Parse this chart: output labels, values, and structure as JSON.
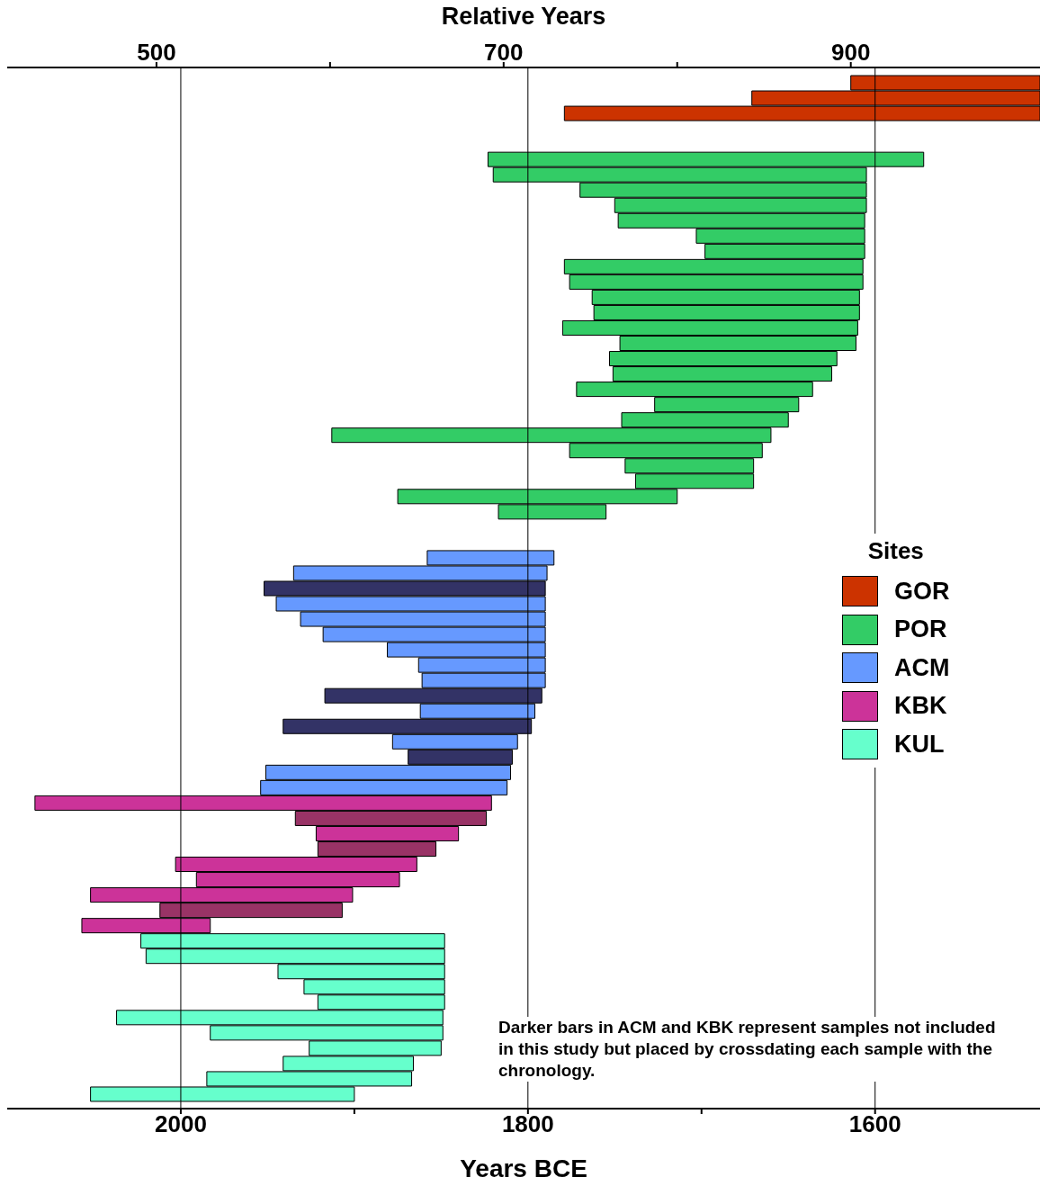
{
  "chart_data": {
    "type": "bar",
    "orientation": "horizontal",
    "xlabel": "Years BCE",
    "x2label": "Relative Years",
    "legend_title": "Sites",
    "legend": "right",
    "categories": [
      null,
      null,
      null,
      null,
      null,
      null,
      null,
      null,
      null,
      null,
      null,
      null,
      null,
      null,
      null,
      null,
      null,
      null,
      null,
      null,
      null,
      null,
      null,
      null,
      null,
      null,
      null,
      null,
      null,
      null,
      null,
      null,
      null,
      null,
      null,
      null,
      null,
      null,
      null,
      null,
      null,
      null,
      null,
      null,
      null,
      null,
      null,
      null,
      null,
      null,
      null,
      null,
      null,
      null,
      null,
      null,
      null,
      null,
      null,
      null,
      null,
      null,
      null,
      null,
      null,
      null,
      null
    ],
    "xlim": [
      2100,
      1505
    ],
    "xticks": [
      2000,
      {
        "value": 1900,
        "label": null
      },
      1800,
      {
        "value": 1700,
        "label": null
      },
      1600
    ],
    "x2lim": [
      414,
      1009
    ],
    "x2ticks": [
      500,
      {
        "value": 600,
        "label": null
      },
      700,
      {
        "value": 800,
        "label": null
      },
      900
    ],
    "ref_lines": [
      {
        "axis": "x",
        "value": 2000,
        "color": "#000000"
      },
      {
        "axis": "x",
        "value": 1800,
        "color": "#000000"
      },
      {
        "axis": "x",
        "value": 1600,
        "color": "#000000"
      }
    ],
    "series": [
      {
        "name": "GOR",
        "color": "#cc3300",
        "values": [
          109,
          166,
          274,
          null,
          null,
          null,
          null,
          null,
          null,
          null,
          null,
          null,
          null,
          null,
          null,
          null,
          null,
          null,
          null,
          null,
          null,
          null,
          null,
          null,
          null,
          null,
          null,
          null,
          null,
          null,
          null,
          null,
          null,
          null,
          null,
          null,
          null,
          null,
          null,
          null,
          null,
          null,
          null,
          null,
          null,
          null,
          null,
          null,
          null,
          null,
          null,
          null,
          null,
          null,
          null,
          null,
          null,
          null,
          null,
          null,
          null,
          null,
          null,
          null,
          null,
          null,
          null
        ],
        "base": [
          1505,
          1505,
          1505,
          null,
          null,
          null,
          null,
          null,
          null,
          null,
          null,
          null,
          null,
          null,
          null,
          null,
          null,
          null,
          null,
          null,
          null,
          null,
          null,
          null,
          null,
          null,
          null,
          null,
          null,
          null,
          null,
          null,
          null,
          null,
          null,
          null,
          null,
          null,
          null,
          null,
          null,
          null,
          null,
          null,
          null,
          null,
          null,
          null,
          null,
          null,
          null,
          null,
          null,
          null,
          null,
          null,
          null,
          null,
          null,
          null,
          null,
          null,
          null,
          null,
          null,
          null,
          null
        ]
      },
      {
        "name": "POR",
        "color": "#33cc66",
        "values": [
          null,
          null,
          null,
          null,
          null,
          251,
          215,
          165,
          145,
          142,
          97,
          92,
          172,
          169,
          154,
          153,
          170,
          136,
          131,
          126,
          136,
          83,
          96,
          253,
          111,
          74,
          68,
          161,
          62,
          null,
          null,
          null,
          null,
          null,
          null,
          null,
          null,
          null,
          null,
          null,
          null,
          null,
          null,
          null,
          null,
          null,
          null,
          null,
          null,
          null,
          null,
          null,
          null,
          null,
          null,
          null,
          null,
          null,
          null,
          null,
          null,
          null,
          null,
          null,
          null,
          null,
          null
        ],
        "base": [
          null,
          null,
          null,
          null,
          null,
          1572,
          1605,
          1605,
          1605,
          1606,
          1606,
          1606,
          1607,
          1607,
          1609,
          1609,
          1610,
          1611,
          1622,
          1625,
          1636,
          1644,
          1650,
          1660,
          1665,
          1670,
          1670,
          1714,
          1755,
          null,
          null,
          null,
          null,
          null,
          null,
          null,
          null,
          null,
          null,
          null,
          null,
          null,
          null,
          null,
          null,
          null,
          null,
          null,
          null,
          null,
          null,
          null,
          null,
          null,
          null,
          null,
          null,
          null,
          null,
          null,
          null,
          null,
          null,
          null,
          null,
          null,
          null
        ]
      },
      {
        "name": "ACM",
        "color": "#6699ff",
        "values": [
          null,
          null,
          null,
          null,
          null,
          null,
          null,
          null,
          null,
          null,
          null,
          null,
          null,
          null,
          null,
          null,
          null,
          null,
          null,
          null,
          null,
          null,
          null,
          null,
          null,
          null,
          null,
          null,
          null,
          null,
          null,
          73,
          146,
          null,
          155,
          141,
          128,
          91,
          73,
          71,
          null,
          66,
          null,
          72,
          null,
          141,
          142,
          null,
          null,
          null,
          null,
          null,
          null,
          null,
          null,
          null,
          null,
          null,
          null,
          null,
          null,
          null,
          null,
          null,
          null,
          null,
          null
        ],
        "base": [
          null,
          null,
          null,
          null,
          null,
          null,
          null,
          null,
          null,
          null,
          null,
          null,
          null,
          null,
          null,
          null,
          null,
          null,
          null,
          null,
          null,
          null,
          null,
          null,
          null,
          null,
          null,
          null,
          null,
          null,
          null,
          1785,
          1789,
          null,
          1790,
          1790,
          1790,
          1790,
          1790,
          1790,
          null,
          1796,
          null,
          1806,
          null,
          1810,
          1812,
          null,
          null,
          null,
          null,
          null,
          null,
          null,
          null,
          null,
          null,
          null,
          null,
          null,
          null,
          null,
          null,
          null,
          null,
          null,
          null
        ]
      },
      {
        "color": "#333366",
        "values": [
          null,
          null,
          null,
          null,
          null,
          null,
          null,
          null,
          null,
          null,
          null,
          null,
          null,
          null,
          null,
          null,
          null,
          null,
          null,
          null,
          null,
          null,
          null,
          null,
          null,
          null,
          null,
          null,
          null,
          null,
          null,
          null,
          null,
          162,
          null,
          null,
          null,
          null,
          null,
          null,
          125,
          null,
          143,
          null,
          60,
          null,
          null,
          null,
          null,
          null,
          null,
          null,
          null,
          null,
          null,
          null,
          null,
          null,
          null,
          null,
          null,
          null,
          null,
          null,
          null,
          null,
          null
        ],
        "base": [
          null,
          null,
          null,
          null,
          null,
          null,
          null,
          null,
          null,
          null,
          null,
          null,
          null,
          null,
          null,
          null,
          null,
          null,
          null,
          null,
          null,
          null,
          null,
          null,
          null,
          null,
          null,
          null,
          null,
          null,
          null,
          null,
          null,
          1790,
          null,
          null,
          null,
          null,
          null,
          null,
          1792,
          null,
          1798,
          null,
          1809,
          null,
          null,
          null,
          null,
          null,
          null,
          null,
          null,
          null,
          null,
          null,
          null,
          null,
          null,
          null,
          null,
          null,
          null,
          null,
          null,
          null,
          null
        ]
      },
      {
        "name": "KBK",
        "color": "#cc3399",
        "values": [
          null,
          null,
          null,
          null,
          null,
          null,
          null,
          null,
          null,
          null,
          null,
          null,
          null,
          null,
          null,
          null,
          null,
          null,
          null,
          null,
          null,
          null,
          null,
          null,
          null,
          null,
          null,
          null,
          null,
          null,
          null,
          null,
          null,
          null,
          null,
          null,
          null,
          null,
          null,
          null,
          null,
          null,
          null,
          null,
          null,
          null,
          null,
          263,
          null,
          82,
          null,
          139,
          117,
          151,
          null,
          74,
          null,
          null,
          null,
          null,
          null,
          null,
          null,
          null,
          null,
          null,
          null
        ],
        "base": [
          null,
          null,
          null,
          null,
          null,
          null,
          null,
          null,
          null,
          null,
          null,
          null,
          null,
          null,
          null,
          null,
          null,
          null,
          null,
          null,
          null,
          null,
          null,
          null,
          null,
          null,
          null,
          null,
          null,
          null,
          null,
          null,
          null,
          null,
          null,
          null,
          null,
          null,
          null,
          null,
          null,
          null,
          null,
          null,
          null,
          null,
          null,
          1821,
          null,
          1840,
          null,
          1864,
          1874,
          1901,
          null,
          1983,
          null,
          null,
          null,
          null,
          null,
          null,
          null,
          null,
          null,
          null,
          null
        ]
      },
      {
        "color": "#993366",
        "values": [
          null,
          null,
          null,
          null,
          null,
          null,
          null,
          null,
          null,
          null,
          null,
          null,
          null,
          null,
          null,
          null,
          null,
          null,
          null,
          null,
          null,
          null,
          null,
          null,
          null,
          null,
          null,
          null,
          null,
          null,
          null,
          null,
          null,
          null,
          null,
          null,
          null,
          null,
          null,
          null,
          null,
          null,
          null,
          null,
          null,
          null,
          null,
          null,
          110,
          null,
          68,
          null,
          null,
          null,
          105,
          null,
          null,
          null,
          null,
          null,
          null,
          null,
          null,
          null,
          null,
          null,
          null
        ],
        "base": [
          null,
          null,
          null,
          null,
          null,
          null,
          null,
          null,
          null,
          null,
          null,
          null,
          null,
          null,
          null,
          null,
          null,
          null,
          null,
          null,
          null,
          null,
          null,
          null,
          null,
          null,
          null,
          null,
          null,
          null,
          null,
          null,
          null,
          null,
          null,
          null,
          null,
          null,
          null,
          null,
          null,
          null,
          null,
          null,
          null,
          null,
          null,
          null,
          1824,
          null,
          1853,
          null,
          null,
          null,
          1907,
          null,
          null,
          null,
          null,
          null,
          null,
          null,
          null,
          null,
          null,
          null,
          null
        ]
      },
      {
        "name": "KUL",
        "color": "#66ffcc",
        "values": [
          null,
          null,
          null,
          null,
          null,
          null,
          null,
          null,
          null,
          null,
          null,
          null,
          null,
          null,
          null,
          null,
          null,
          null,
          null,
          null,
          null,
          null,
          null,
          null,
          null,
          null,
          null,
          null,
          null,
          null,
          null,
          null,
          null,
          null,
          null,
          null,
          null,
          null,
          null,
          null,
          null,
          null,
          null,
          null,
          null,
          null,
          null,
          null,
          null,
          null,
          null,
          null,
          null,
          null,
          null,
          null,
          175,
          172,
          96,
          81,
          73,
          188,
          134,
          76,
          75,
          118,
          152
        ],
        "base": [
          null,
          null,
          null,
          null,
          null,
          null,
          null,
          null,
          null,
          null,
          null,
          null,
          null,
          null,
          null,
          null,
          null,
          null,
          null,
          null,
          null,
          null,
          null,
          null,
          null,
          null,
          null,
          null,
          null,
          null,
          null,
          null,
          null,
          null,
          null,
          null,
          null,
          null,
          null,
          null,
          null,
          null,
          null,
          null,
          null,
          null,
          null,
          null,
          null,
          null,
          null,
          null,
          null,
          null,
          null,
          null,
          1848,
          1848,
          1848,
          1848,
          1848,
          1849,
          1849,
          1850,
          1866,
          1867,
          1900
        ]
      }
    ],
    "annotations": [
      "Darker bars in ACM and KBK represent samples not included in this study but placed by crossdating each sample with the chronology."
    ]
  }
}
